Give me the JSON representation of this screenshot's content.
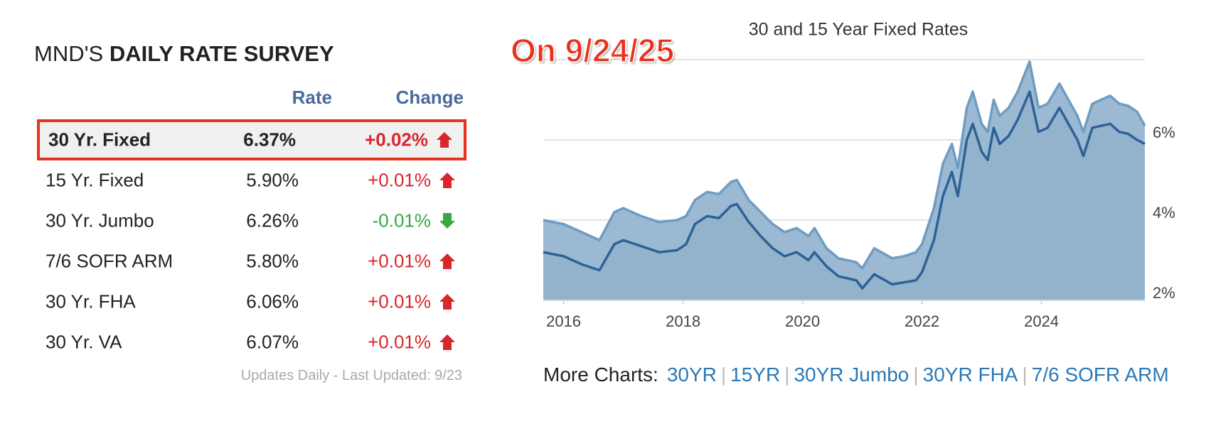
{
  "survey": {
    "title_prefix": "MND'S",
    "title_bold": "DAILY RATE SURVEY",
    "headers": [
      "Rate",
      "Change"
    ],
    "rows": [
      [
        "30 Yr. Fixed",
        "6.37%",
        "+0.02%"
      ],
      [
        "15 Yr. Fixed",
        "5.90%",
        "+0.01%"
      ],
      [
        "30 Yr. Jumbo",
        "6.26%",
        "-0.01%"
      ],
      [
        "7/6 SOFR ARM",
        "5.80%",
        "+0.01%"
      ],
      [
        "30 Yr. FHA",
        "6.06%",
        "+0.01%"
      ],
      [
        "30 Yr. VA",
        "6.07%",
        "+0.01%"
      ]
    ],
    "footnote": "Updates Daily - Last Updated: 9/23"
  },
  "annotation": "On 9/24/25",
  "more_charts": {
    "label": "More Charts:",
    "links": [
      "30YR",
      "15YR",
      "30YR Jumbo",
      "30YR FHA",
      "7/6 SOFR ARM"
    ]
  },
  "chart_data": {
    "type": "area",
    "title": "30 and 15 Year Fixed Rates",
    "x": [
      2015.66,
      2016.0,
      2016.3,
      2016.6,
      2016.85,
      2017.0,
      2017.3,
      2017.6,
      2017.9,
      2018.05,
      2018.2,
      2018.4,
      2018.6,
      2018.8,
      2018.9,
      2019.1,
      2019.3,
      2019.5,
      2019.7,
      2019.9,
      2020.1,
      2020.2,
      2020.4,
      2020.6,
      2020.9,
      2021.0,
      2021.2,
      2021.5,
      2021.7,
      2021.9,
      2022.0,
      2022.2,
      2022.35,
      2022.5,
      2022.6,
      2022.75,
      2022.85,
      2023.0,
      2023.1,
      2023.2,
      2023.3,
      2023.45,
      2023.6,
      2023.8,
      2023.95,
      2024.1,
      2024.3,
      2024.45,
      2024.6,
      2024.7,
      2024.85,
      2025.0,
      2025.15,
      2025.3,
      2025.45,
      2025.6,
      2025.73
    ],
    "series": [
      {
        "color": "#6f9cc2",
        "fill": "#9bb9d2",
        "values": [
          4.0,
          3.9,
          3.7,
          3.5,
          4.2,
          4.3,
          4.1,
          3.95,
          4.0,
          4.1,
          4.5,
          4.7,
          4.65,
          4.95,
          5.0,
          4.5,
          4.2,
          3.9,
          3.7,
          3.8,
          3.6,
          3.8,
          3.3,
          3.05,
          2.95,
          2.8,
          3.3,
          3.05,
          3.1,
          3.2,
          3.4,
          4.3,
          5.4,
          5.9,
          5.3,
          6.8,
          7.2,
          6.4,
          6.2,
          7.0,
          6.6,
          6.8,
          7.2,
          7.95,
          6.8,
          6.9,
          7.4,
          7.0,
          6.6,
          6.2,
          6.9,
          7.0,
          7.1,
          6.9,
          6.85,
          6.7,
          6.35
        ]
      },
      {
        "color": "#2f6196",
        "fill": "#93b3cd",
        "values": [
          3.2,
          3.1,
          2.9,
          2.75,
          3.4,
          3.5,
          3.35,
          3.2,
          3.25,
          3.4,
          3.9,
          4.1,
          4.05,
          4.35,
          4.4,
          3.95,
          3.6,
          3.3,
          3.1,
          3.2,
          3.0,
          3.2,
          2.85,
          2.6,
          2.5,
          2.3,
          2.65,
          2.4,
          2.45,
          2.5,
          2.7,
          3.5,
          4.6,
          5.2,
          4.6,
          6.0,
          6.4,
          5.7,
          5.5,
          6.3,
          5.9,
          6.1,
          6.5,
          7.2,
          6.2,
          6.3,
          6.8,
          6.4,
          6.0,
          5.6,
          6.3,
          6.35,
          6.4,
          6.2,
          6.15,
          6.0,
          5.9
        ]
      }
    ],
    "xlim": [
      2015.66,
      2025.73
    ],
    "xticks": [
      2016,
      2018,
      2020,
      2022,
      2024
    ],
    "ylim": [
      2,
      8
    ],
    "yticks": [
      {
        "value": 2,
        "label": "2%"
      },
      {
        "value": 4,
        "label": "4%"
      },
      {
        "value": 6,
        "label": "6%"
      }
    ],
    "grid": true
  }
}
